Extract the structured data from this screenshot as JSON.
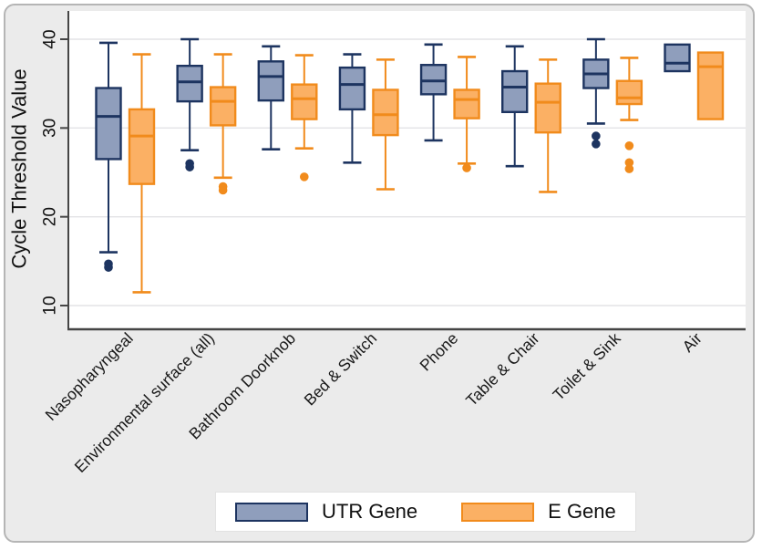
{
  "figure": {
    "card_background": "#ebebeb",
    "plot_background": "#ffffff",
    "grid_color": "#e3e3e6",
    "axis_color": "#454545",
    "text_color": "#111111"
  },
  "chart_data": {
    "type": "boxplot",
    "title": "",
    "ylabel": "Cycle Threshold Value",
    "xlabel": "",
    "ylim": [
      7.5,
      43
    ],
    "yticks": [
      10,
      20,
      30,
      40
    ],
    "grid": true,
    "legend_position": "bottom",
    "categories": [
      "Nasopharyngeal",
      "Environmental surface (all)",
      "Bathroom Doorknob",
      "Bed & Switch",
      "Phone",
      "Table & Chair",
      "Toilet & Sink",
      "Air"
    ],
    "series": [
      {
        "name": "UTR Gene",
        "fill": "#8f9ebc",
        "stroke": "#1d3460",
        "boxes": [
          {
            "low": 16.0,
            "q1": 26.5,
            "median": 31.3,
            "q3": 34.5,
            "high": 39.6,
            "outliers": [
              14.7,
              14.3
            ]
          },
          {
            "low": 27.5,
            "q1": 33.0,
            "median": 35.2,
            "q3": 37.0,
            "high": 40.0,
            "outliers": [
              26.0,
              25.6
            ]
          },
          {
            "low": 27.6,
            "q1": 33.1,
            "median": 35.8,
            "q3": 37.5,
            "high": 39.2,
            "outliers": []
          },
          {
            "low": 26.1,
            "q1": 32.1,
            "median": 34.9,
            "q3": 36.8,
            "high": 38.3,
            "outliers": []
          },
          {
            "low": 28.6,
            "q1": 33.8,
            "median": 35.3,
            "q3": 37.1,
            "high": 39.4,
            "outliers": []
          },
          {
            "low": 25.7,
            "q1": 31.8,
            "median": 34.6,
            "q3": 36.4,
            "high": 39.2,
            "outliers": []
          },
          {
            "low": 30.5,
            "q1": 34.5,
            "median": 36.1,
            "q3": 37.7,
            "high": 40.0,
            "outliers": [
              29.1,
              28.2
            ]
          },
          {
            "low": 36.4,
            "q1": 36.4,
            "median": 37.3,
            "q3": 39.4,
            "high": 39.4,
            "outliers": []
          }
        ]
      },
      {
        "name": "E Gene",
        "fill": "#fbb064",
        "stroke": "#f18b1c",
        "boxes": [
          {
            "low": 11.5,
            "q1": 23.7,
            "median": 29.1,
            "q3": 32.1,
            "high": 38.3,
            "outliers": []
          },
          {
            "low": 24.4,
            "q1": 30.3,
            "median": 33.0,
            "q3": 34.6,
            "high": 38.3,
            "outliers": [
              23.4,
              23.0
            ]
          },
          {
            "low": 27.7,
            "q1": 31.0,
            "median": 33.3,
            "q3": 34.9,
            "high": 38.2,
            "outliers": [
              24.5
            ]
          },
          {
            "low": 23.1,
            "q1": 29.2,
            "median": 31.5,
            "q3": 34.3,
            "high": 37.7,
            "outliers": []
          },
          {
            "low": 26.0,
            "q1": 31.1,
            "median": 33.2,
            "q3": 34.3,
            "high": 38.0,
            "outliers": [
              25.5
            ]
          },
          {
            "low": 22.8,
            "q1": 29.5,
            "median": 32.9,
            "q3": 35.0,
            "high": 37.7,
            "outliers": []
          },
          {
            "low": 30.9,
            "q1": 32.7,
            "median": 33.4,
            "q3": 35.3,
            "high": 37.9,
            "outliers": [
              28.0,
              26.1,
              25.4
            ]
          },
          {
            "low": 31.0,
            "q1": 31.0,
            "median": 36.9,
            "q3": 38.5,
            "high": 38.5,
            "outliers": []
          }
        ]
      }
    ]
  }
}
